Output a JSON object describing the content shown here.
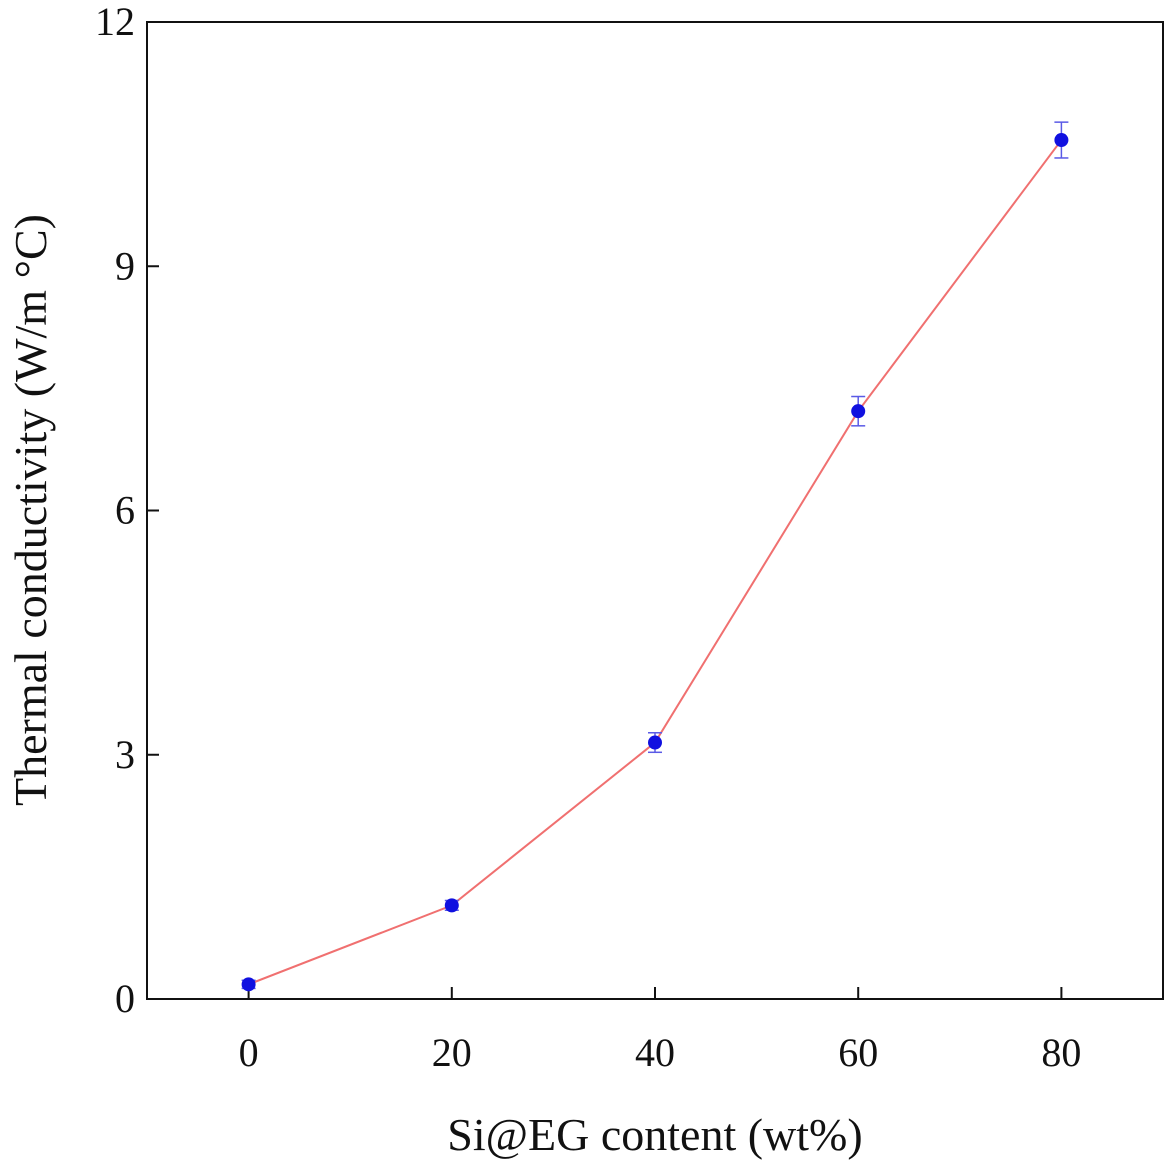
{
  "chart_data": {
    "type": "line",
    "title": "",
    "xlabel": "Si@EG content (wt%)",
    "ylabel": "Thermal conductivity (W/m °C)",
    "xlim": [
      -10,
      90
    ],
    "ylim": [
      0,
      12
    ],
    "xticks": [
      "0",
      "20",
      "40",
      "60",
      "80"
    ],
    "yticks": [
      "0",
      "3",
      "6",
      "9",
      "12"
    ],
    "grid": false,
    "legend": "none",
    "series": [
      {
        "x": [
          0,
          20,
          40,
          60,
          80
        ],
        "y": [
          0.18,
          1.15,
          3.15,
          7.22,
          10.55
        ],
        "error": [
          0.05,
          0.06,
          0.12,
          0.18,
          0.22
        ],
        "line_color": "#f07070",
        "marker_color": "#1010e0",
        "error_color": "#5a5ae6"
      }
    ]
  }
}
